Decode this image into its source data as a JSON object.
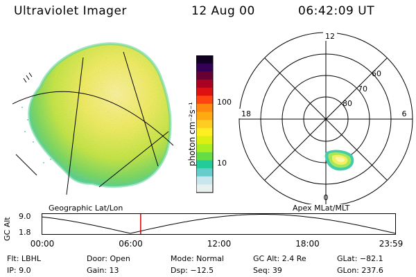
{
  "header": {
    "title": "Ultraviolet Imager",
    "date": "12 Aug 00",
    "time": "06:42:09 UT"
  },
  "colorbar": {
    "unit_label": "photon cm⁻²s⁻¹",
    "ticks": [
      "100",
      "10"
    ],
    "colors": [
      "#e8f0f0",
      "#c8e6ec",
      "#66cccc",
      "#22cc99",
      "#66dd44",
      "#aaee22",
      "#ddee11",
      "#ffee22",
      "#ffcc22",
      "#ffaa11",
      "#ff8811",
      "#ff4411",
      "#dd1111",
      "#aa0022",
      "#660033",
      "#330055",
      "#110022"
    ]
  },
  "left_panel": {
    "caption": "Geographic Lat/Lon"
  },
  "right_panel": {
    "caption": "Apex MLat/MLT",
    "mlt_labels": {
      "top": "12",
      "left": "18",
      "right": "6",
      "bottom": "0"
    },
    "mlat_labels": [
      "60",
      "70",
      "80"
    ]
  },
  "timeline": {
    "ylabel": "GC Alt",
    "y_ticks": [
      "9.0",
      "1.8"
    ],
    "x_ticks": [
      "00:00",
      "06:00",
      "12:00",
      "18:00",
      "23:59"
    ],
    "current_time_hours": 6.7,
    "marker_color": "#cc0000"
  },
  "info": {
    "filter": "Flt: LBHL",
    "ip": "IP:  9.0",
    "door": "Door: Open",
    "gain": "Gain: 13",
    "mode": "Mode: Normal",
    "dsp": "Dsp:   −12.5",
    "gc_alt": "GC Alt: 2.4 Re",
    "seq": "Seq: 39",
    "glat": "GLat: −82.1",
    "glon": "GLon: 237.6"
  }
}
